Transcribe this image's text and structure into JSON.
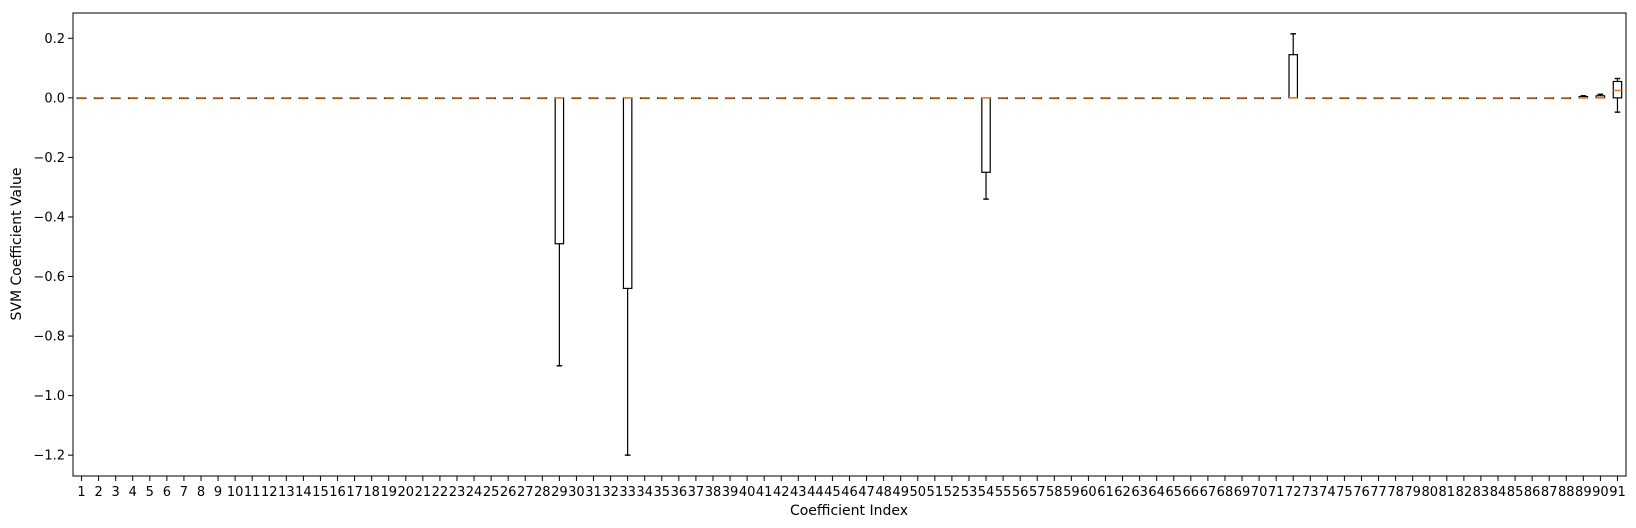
{
  "chart_data": {
    "type": "boxplot",
    "xlabel": "Coefficient Index",
    "ylabel": "SVM Coefficient Value",
    "ylim": [
      -1.27,
      0.285
    ],
    "xlim": [
      0.5,
      91.5
    ],
    "yticks": [
      0.2,
      0.0,
      -0.2,
      -0.4,
      -0.6,
      -0.8,
      -1.0,
      -1.2
    ],
    "ytick_labels": [
      "0.2",
      "0.0",
      "−0.2",
      "−0.4",
      "−0.6",
      "−0.8",
      "−1.0",
      "−1.2"
    ],
    "categories": [
      "1",
      "2",
      "3",
      "4",
      "5",
      "6",
      "7",
      "8",
      "9",
      "10",
      "11",
      "12",
      "13",
      "14",
      "15",
      "16",
      "17",
      "18",
      "19",
      "20",
      "21",
      "22",
      "23",
      "24",
      "25",
      "26",
      "27",
      "28",
      "29",
      "30",
      "31",
      "32",
      "33",
      "34",
      "35",
      "36",
      "37",
      "38",
      "39",
      "40",
      "41",
      "42",
      "43",
      "44",
      "45",
      "46",
      "47",
      "48",
      "49",
      "50",
      "51",
      "52",
      "53",
      "54",
      "55",
      "56",
      "57",
      "58",
      "59",
      "60",
      "61",
      "62",
      "63",
      "64",
      "65",
      "66",
      "67",
      "68",
      "69",
      "70",
      "71",
      "72",
      "73",
      "74",
      "75",
      "76",
      "77",
      "78",
      "79",
      "80",
      "81",
      "82",
      "83",
      "84",
      "85",
      "86",
      "87",
      "88",
      "89",
      "90",
      "91"
    ],
    "nonzero_boxes": [
      {
        "index": 29,
        "whisker_low": -0.9,
        "q1": -0.49,
        "median": 0.0,
        "q3": 0.0,
        "whisker_high": 0.0
      },
      {
        "index": 33,
        "whisker_low": -1.2,
        "q1": -0.64,
        "median": 0.0,
        "q3": 0.0,
        "whisker_high": 0.0
      },
      {
        "index": 54,
        "whisker_low": -0.34,
        "q1": -0.25,
        "median": 0.0,
        "q3": 0.0,
        "whisker_high": 0.0
      },
      {
        "index": 72,
        "whisker_low": 0.0,
        "q1": 0.0,
        "median": 0.0,
        "q3": 0.145,
        "whisker_high": 0.215
      },
      {
        "index": 89,
        "whisker_low": 0.0,
        "q1": 0.0,
        "median": 0.0,
        "q3": 0.004,
        "whisker_high": 0.007
      },
      {
        "index": 90,
        "whisker_low": 0.0,
        "q1": 0.0,
        "median": 0.0,
        "q3": 0.007,
        "whisker_high": 0.012
      },
      {
        "index": 91,
        "whisker_low": -0.048,
        "q1": 0.0,
        "median": 0.025,
        "q3": 0.055,
        "whisker_high": 0.065
      }
    ],
    "default_box": {
      "whisker_low": 0.0,
      "q1": 0.0,
      "median": 0.0,
      "q3": 0.0,
      "whisker_high": 0.0
    },
    "grid": false,
    "colors": {
      "box": "#000000",
      "median": "#ff7f0e",
      "axes": "#000000",
      "background": "#ffffff"
    }
  }
}
